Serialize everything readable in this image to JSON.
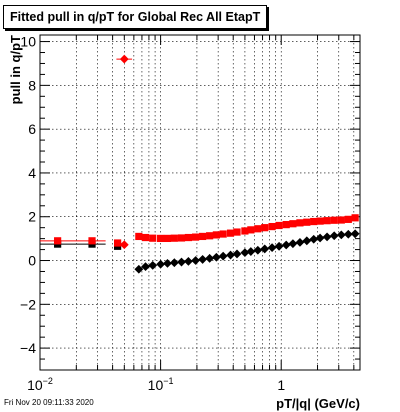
{
  "canvas": {
    "title": "Fitted pull in q/pT for Global Rec All EtapT",
    "footer": "Fri Nov 20 09:11:33 2020"
  },
  "chart_data": {
    "type": "scatter",
    "title": "Fitted pull in q/pT for Global Rec All EtapT",
    "xlabel": "pT/|q| (GeV/c)",
    "ylabel": "pull in q/pT",
    "x_scale": "log",
    "xlim": [
      0.01,
      4.5
    ],
    "ylim": [
      -5,
      10.3
    ],
    "x_tick_labels": [
      "10^-2",
      "10^-1",
      "1"
    ],
    "y_tick_labels": [
      "−4",
      "−2",
      "0",
      "2",
      "4",
      "6",
      "8",
      "10"
    ],
    "grid": true,
    "series": [
      {
        "marker": "square",
        "color": "#000000",
        "points": [
          {
            "x": 0.014,
            "y": 0.75,
            "xerr": [
              0.01,
              0.02
            ]
          },
          {
            "x": 0.027,
            "y": 0.75,
            "xerr": [
              0.02,
              0.035
            ]
          },
          {
            "x": 0.044,
            "y": 0.65
          }
        ]
      },
      {
        "marker": "diamond",
        "color": "#000000",
        "points": [
          {
            "x": 0.066,
            "y": -0.4
          },
          {
            "x": 0.075,
            "y": -0.28
          },
          {
            "x": 0.086,
            "y": -0.22
          },
          {
            "x": 0.1,
            "y": -0.17
          },
          {
            "x": 0.114,
            "y": -0.13
          },
          {
            "x": 0.13,
            "y": -0.1
          },
          {
            "x": 0.149,
            "y": -0.07
          },
          {
            "x": 0.17,
            "y": -0.04
          },
          {
            "x": 0.195,
            "y": 0.0
          },
          {
            "x": 0.223,
            "y": 0.05
          },
          {
            "x": 0.255,
            "y": 0.1
          },
          {
            "x": 0.29,
            "y": 0.15
          },
          {
            "x": 0.33,
            "y": 0.2
          },
          {
            "x": 0.38,
            "y": 0.25
          },
          {
            "x": 0.43,
            "y": 0.3
          },
          {
            "x": 0.5,
            "y": 0.36
          },
          {
            "x": 0.56,
            "y": 0.41
          },
          {
            "x": 0.64,
            "y": 0.47
          },
          {
            "x": 0.73,
            "y": 0.53
          },
          {
            "x": 0.84,
            "y": 0.59
          },
          {
            "x": 0.96,
            "y": 0.65
          },
          {
            "x": 1.1,
            "y": 0.71
          },
          {
            "x": 1.25,
            "y": 0.77
          },
          {
            "x": 1.43,
            "y": 0.83
          },
          {
            "x": 1.63,
            "y": 0.9
          },
          {
            "x": 1.86,
            "y": 0.97
          },
          {
            "x": 2.1,
            "y": 1.03
          },
          {
            "x": 2.4,
            "y": 1.08
          },
          {
            "x": 2.75,
            "y": 1.13
          },
          {
            "x": 3.15,
            "y": 1.17
          },
          {
            "x": 3.6,
            "y": 1.2
          },
          {
            "x": 4.1,
            "y": 1.22
          }
        ]
      },
      {
        "marker": "square",
        "color": "#ff0000",
        "points": [
          {
            "x": 0.014,
            "y": 0.9,
            "xerr": [
              0.01,
              0.02
            ]
          },
          {
            "x": 0.027,
            "y": 0.9,
            "xerr": [
              0.02,
              0.035
            ]
          },
          {
            "x": 0.044,
            "y": 0.8
          },
          {
            "x": 0.066,
            "y": 1.1
          },
          {
            "x": 0.075,
            "y": 1.05
          },
          {
            "x": 0.086,
            "y": 1.02
          },
          {
            "x": 0.1,
            "y": 1.01
          },
          {
            "x": 0.114,
            "y": 1.01
          },
          {
            "x": 0.13,
            "y": 1.02
          },
          {
            "x": 0.149,
            "y": 1.03
          },
          {
            "x": 0.17,
            "y": 1.05
          },
          {
            "x": 0.195,
            "y": 1.07
          },
          {
            "x": 0.223,
            "y": 1.1
          },
          {
            "x": 0.255,
            "y": 1.13
          },
          {
            "x": 0.29,
            "y": 1.17
          },
          {
            "x": 0.33,
            "y": 1.21
          },
          {
            "x": 0.38,
            "y": 1.25
          },
          {
            "x": 0.43,
            "y": 1.3
          },
          {
            "x": 0.5,
            "y": 1.35
          },
          {
            "x": 0.56,
            "y": 1.4
          },
          {
            "x": 0.64,
            "y": 1.45
          },
          {
            "x": 0.73,
            "y": 1.5
          },
          {
            "x": 0.84,
            "y": 1.55
          },
          {
            "x": 0.96,
            "y": 1.6
          },
          {
            "x": 1.1,
            "y": 1.64
          },
          {
            "x": 1.25,
            "y": 1.68
          },
          {
            "x": 1.43,
            "y": 1.72
          },
          {
            "x": 1.63,
            "y": 1.75
          },
          {
            "x": 1.86,
            "y": 1.78
          },
          {
            "x": 2.1,
            "y": 1.8
          },
          {
            "x": 2.4,
            "y": 1.82
          },
          {
            "x": 2.75,
            "y": 1.84
          },
          {
            "x": 3.15,
            "y": 1.85
          },
          {
            "x": 3.6,
            "y": 1.88
          },
          {
            "x": 4.1,
            "y": 1.95
          }
        ]
      },
      {
        "marker": "diamond",
        "color": "#ff0000",
        "points": [
          {
            "x": 0.05,
            "y": 9.2,
            "xerr": [
              0.043,
              0.058
            ]
          },
          {
            "x": 0.05,
            "y": 0.72
          }
        ]
      }
    ]
  }
}
